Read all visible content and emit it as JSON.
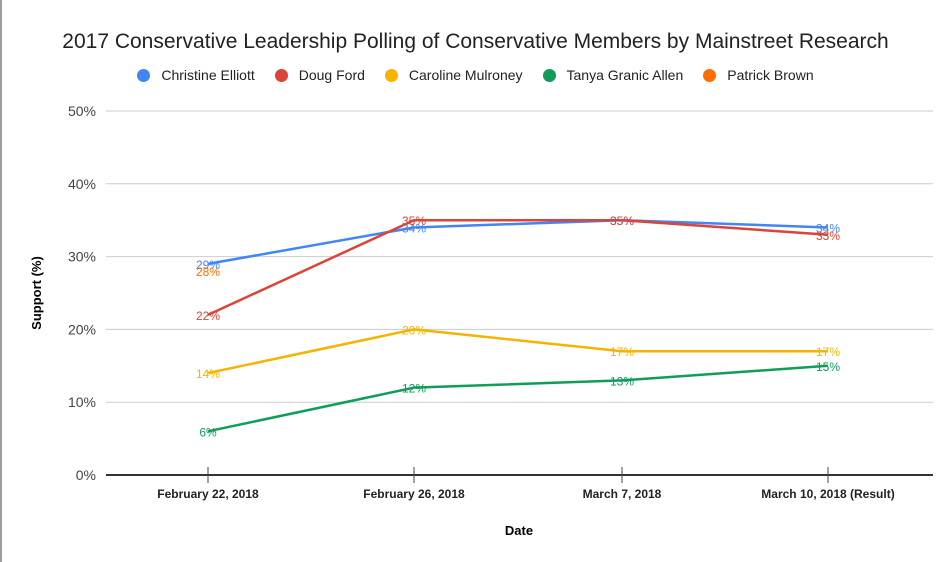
{
  "chart_data": {
    "type": "line",
    "title": "2017 Conservative Leadership Polling of Conservative Members by Mainstreet Research",
    "xlabel": "Date",
    "ylabel": "Support (%)",
    "ylim": [
      0,
      50
    ],
    "yticks": [
      0,
      10,
      20,
      30,
      40,
      50
    ],
    "ytick_labels": [
      "0%",
      "10%",
      "20%",
      "30%",
      "40%",
      "50%"
    ],
    "grid": true,
    "legend_position": "top",
    "categories": [
      "February 22, 2018",
      "February 26, 2018",
      "March 7, 2018",
      "March 10, 2018 (Result)"
    ],
    "series": [
      {
        "name": "Christine Elliott",
        "color": "#4285f4",
        "values": [
          29,
          34,
          35,
          34
        ],
        "labels": [
          "29%",
          "34%",
          "35%",
          "34%"
        ]
      },
      {
        "name": "Doug Ford",
        "color": "#db4437",
        "values": [
          22,
          35,
          35,
          33
        ],
        "labels": [
          "22%",
          "35%",
          "35%",
          "33%"
        ]
      },
      {
        "name": "Caroline Mulroney",
        "color": "#f4b400",
        "values": [
          14,
          20,
          17,
          17
        ],
        "labels": [
          "14%",
          "20%",
          "17%",
          "17%"
        ]
      },
      {
        "name": "Tanya Granic Allen",
        "color": "#0f9d58",
        "values": [
          6,
          12,
          13,
          15
        ],
        "labels": [
          "6%",
          "12%",
          "13%",
          "15%"
        ]
      },
      {
        "name": "Patrick Brown",
        "color": "#ff6d01",
        "values": [
          28,
          null,
          null,
          null
        ],
        "labels": [
          "28%",
          null,
          null,
          null
        ]
      }
    ]
  }
}
